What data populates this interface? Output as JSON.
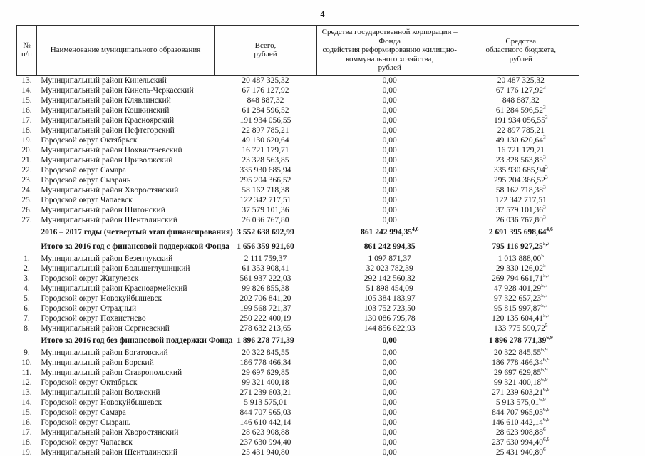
{
  "page": {
    "number": "4"
  },
  "table": {
    "headers": {
      "n": "№\nп/п",
      "name": "Наименование муниципального образования",
      "total": "Всего,\nрублей",
      "fond": "Средства государственной корпорации – Фонда\nсодействия реформированию жилищно-\nкоммунального хозяйства,\nрублей",
      "obl": "Средства\nобластного бюджета,\nрублей"
    },
    "rows": [
      {
        "bold": false,
        "n": "13.",
        "name": "Муниципальный район Кинельский",
        "total": "20 487 325,32",
        "fond": "0,00",
        "fond_sup": "",
        "obl": "20 487 325,32",
        "obl_sup": ""
      },
      {
        "bold": false,
        "n": "14.",
        "name": "Муниципальный район Кинель-Черкасский",
        "total": "67 176 127,92",
        "fond": "0,00",
        "fond_sup": "",
        "obl": "67 176 127,92",
        "obl_sup": "3"
      },
      {
        "bold": false,
        "n": "15.",
        "name": "Муниципальный район Клявлинский",
        "total": "848 887,32",
        "fond": "0,00",
        "fond_sup": "",
        "obl": "848 887,32",
        "obl_sup": ""
      },
      {
        "bold": false,
        "n": "16.",
        "name": "Муниципальный район Кошкинский",
        "total": "61 284 596,52",
        "fond": "0,00",
        "fond_sup": "",
        "obl": "61 284 596,52",
        "obl_sup": "3"
      },
      {
        "bold": false,
        "n": "17.",
        "name": "Муниципальный район Красноярский",
        "total": "191 934 056,55",
        "fond": "0,00",
        "fond_sup": "",
        "obl": "191 934 056,55",
        "obl_sup": "3"
      },
      {
        "bold": false,
        "n": "18.",
        "name": "Муниципальный район Нефтегорский",
        "total": "22 897 785,21",
        "fond": "0,00",
        "fond_sup": "",
        "obl": "22 897 785,21",
        "obl_sup": ""
      },
      {
        "bold": false,
        "n": "19.",
        "name": "Городской округ Октябрьск",
        "total": "49 130 620,64",
        "fond": "0,00",
        "fond_sup": "",
        "obl": "49 130 620,64",
        "obl_sup": "3"
      },
      {
        "bold": false,
        "n": "20.",
        "name": "Муниципальный район Похвистневский",
        "total": "16 721 179,71",
        "fond": "0,00",
        "fond_sup": "",
        "obl": "16 721 179,71",
        "obl_sup": ""
      },
      {
        "bold": false,
        "n": "21.",
        "name": "Муниципальный район Приволжский",
        "total": "23 328 563,85",
        "fond": "0,00",
        "fond_sup": "",
        "obl": "23 328 563,85",
        "obl_sup": "3"
      },
      {
        "bold": false,
        "n": "22.",
        "name": "Городской округ Самара",
        "total": "335 930 685,94",
        "fond": "0,00",
        "fond_sup": "",
        "obl": "335 930 685,94",
        "obl_sup": "3"
      },
      {
        "bold": false,
        "n": "23.",
        "name": "Городской округ Сызрань",
        "total": "295 204 366,52",
        "fond": "0,00",
        "fond_sup": "",
        "obl": "295 204 366,52",
        "obl_sup": "3"
      },
      {
        "bold": false,
        "n": "24.",
        "name": "Муниципальный район Хворостянский",
        "total": "58 162 718,38",
        "fond": "0,00",
        "fond_sup": "",
        "obl": "58 162 718,38",
        "obl_sup": "3"
      },
      {
        "bold": false,
        "n": "25.",
        "name": "Городской округ Чапаевск",
        "total": "122 342 717,51",
        "fond": "0,00",
        "fond_sup": "",
        "obl": "122 342 717,51",
        "obl_sup": ""
      },
      {
        "bold": false,
        "n": "26.",
        "name": "Муниципальный район Шигонский",
        "total": "37 579 101,36",
        "fond": "0,00",
        "fond_sup": "",
        "obl": "37 579 101,36",
        "obl_sup": "3"
      },
      {
        "bold": false,
        "n": "27.",
        "name": "Муниципальный район Шенталинский",
        "total": "26 036 767,80",
        "fond": "0,00",
        "fond_sup": "",
        "obl": "26 036 767,80",
        "obl_sup": "3"
      },
      {
        "bold": true,
        "n": "",
        "name": "2016 – 2017 годы (четвертый этап финансирования)",
        "total": "3 552 638 692,99",
        "fond": "861 242 994,35",
        "fond_sup": "4,6",
        "obl": "2 691 395 698,64",
        "obl_sup": "4,6"
      },
      {
        "bold": true,
        "n": "",
        "name": "Итого за 2016 год с финансовой поддержкой Фонда",
        "total": "1 656 359 921,60",
        "fond": "861 242 994,35",
        "fond_sup": "",
        "obl": "795 116 927,25",
        "obl_sup": "5,7"
      },
      {
        "bold": false,
        "n": "1.",
        "name": "Муниципальный район Безенчукский",
        "total": "2 111 759,37",
        "fond": "1 097 871,37",
        "fond_sup": "",
        "obl": "1 013 888,00",
        "obl_sup": "5"
      },
      {
        "bold": false,
        "n": "2.",
        "name": "Муниципальный район Большеглушицкий",
        "total": "61 353 908,41",
        "fond": "32 023 782,39",
        "fond_sup": "",
        "obl": "29 330 126,02",
        "obl_sup": "5"
      },
      {
        "bold": false,
        "n": "3.",
        "name": "Городской округ Жигулевск",
        "total": "561 937 222,03",
        "fond": "292 142 560,32",
        "fond_sup": "",
        "obl": "269 794 661,71",
        "obl_sup": "5,7"
      },
      {
        "bold": false,
        "n": "4.",
        "name": "Муниципальный район Красноармейский",
        "total": "99 826 855,38",
        "fond": "51 898 454,09",
        "fond_sup": "",
        "obl": "47 928 401,29",
        "obl_sup": "5,7"
      },
      {
        "bold": false,
        "n": "5.",
        "name": "Городской округ Новокуйбышевск",
        "total": "202 706 841,20",
        "fond": "105 384 183,97",
        "fond_sup": "",
        "obl": "97 322 657,23",
        "obl_sup": "5,7"
      },
      {
        "bold": false,
        "n": "6.",
        "name": "Городской округ Отрадный",
        "total": "199 568 721,37",
        "fond": "103 752 723,50",
        "fond_sup": "",
        "obl": "95 815 997,87",
        "obl_sup": "5,7"
      },
      {
        "bold": false,
        "n": "7.",
        "name": "Городской округ Похвистнево",
        "total": "250 222 400,19",
        "fond": "130 086 795,78",
        "fond_sup": "",
        "obl": "120 135 604,41",
        "obl_sup": "5,7"
      },
      {
        "bold": false,
        "n": "8.",
        "name": "Муниципальный район Сергиевский",
        "total": "278 632 213,65",
        "fond": "144 856 622,93",
        "fond_sup": "",
        "obl": "133 775 590,72",
        "obl_sup": "5"
      },
      {
        "bold": true,
        "n": "",
        "name": "Итого за 2016 год без финансовой поддержки Фонда",
        "total": "1 896 278 771,39",
        "fond": "0,00",
        "fond_sup": "",
        "obl": "1 896 278 771,39",
        "obl_sup": "6,9"
      },
      {
        "bold": false,
        "n": "9.",
        "name": "Муниципальный район Богатовский",
        "total": "20 322 845,55",
        "fond": "0,00",
        "fond_sup": "",
        "obl": "20 322 845,55",
        "obl_sup": "6,9"
      },
      {
        "bold": false,
        "n": "10.",
        "name": "Муниципальный район Борский",
        "total": "186 778 466,34",
        "fond": "0,00",
        "fond_sup": "",
        "obl": "186 778 466,34",
        "obl_sup": "6,9"
      },
      {
        "bold": false,
        "n": "11.",
        "name": "Муниципальный район Ставропольский",
        "total": "29 697 629,85",
        "fond": "0,00",
        "fond_sup": "",
        "obl": "29 697 629,85",
        "obl_sup": "6,9"
      },
      {
        "bold": false,
        "n": "12.",
        "name": "Городской округ Октябрьск",
        "total": "99 321 400,18",
        "fond": "0,00",
        "fond_sup": "",
        "obl": "99 321 400,18",
        "obl_sup": "6,9"
      },
      {
        "bold": false,
        "n": "13.",
        "name": "Муниципальный район Волжский",
        "total": "271 239 603,21",
        "fond": "0,00",
        "fond_sup": "",
        "obl": "271 239 603,21",
        "obl_sup": "6,9"
      },
      {
        "bold": false,
        "n": "14.",
        "name": "Городской округ Новокуйбышевск",
        "total": "5 913 575,01",
        "fond": "0,00",
        "fond_sup": "",
        "obl": "5 913 575,01",
        "obl_sup": "6,9"
      },
      {
        "bold": false,
        "n": "15.",
        "name": "Городской округ Самара",
        "total": "844 707 965,03",
        "fond": "0,00",
        "fond_sup": "",
        "obl": "844 707 965,03",
        "obl_sup": "6,9"
      },
      {
        "bold": false,
        "n": "16.",
        "name": "Городской округ Сызрань",
        "total": "146 610 442,14",
        "fond": "0,00",
        "fond_sup": "",
        "obl": "146 610 442,14",
        "obl_sup": "6,9"
      },
      {
        "bold": false,
        "n": "17.",
        "name": "Муниципальный район Хворостянский",
        "total": "28 623 908,88",
        "fond": "0,00",
        "fond_sup": "",
        "obl": "28 623 908,88",
        "obl_sup": "6"
      },
      {
        "bold": false,
        "n": "18.",
        "name": "Городской округ Чапаевск",
        "total": "237 630 994,40",
        "fond": "0,00",
        "fond_sup": "",
        "obl": "237 630 994,40",
        "obl_sup": "6,9"
      },
      {
        "bold": false,
        "n": "19.",
        "name": "Муниципальный район Шенталинский",
        "total": "25 431 940,80",
        "fond": "0,00",
        "fond_sup": "",
        "obl": "25 431 940,80",
        "obl_sup": "6"
      }
    ]
  }
}
